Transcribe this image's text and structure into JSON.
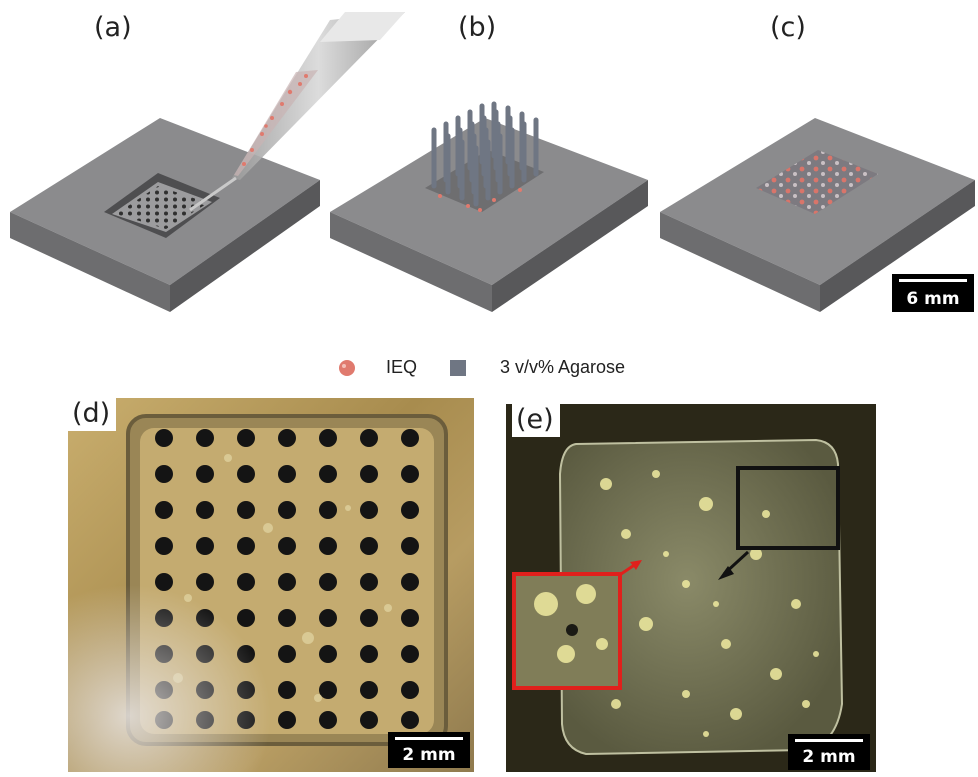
{
  "panels": {
    "a": "(a)",
    "b": "(b)",
    "c": "(c)",
    "d": "(d)",
    "e": "(e)"
  },
  "scale_bars": {
    "top": "6 mm",
    "d": "2 mm",
    "e": "2 mm"
  },
  "legend": {
    "ieq_label": "IEQ",
    "agarose_label": "3 v/v% Agarose",
    "ieq_color": "#e07a6e",
    "agarose_color": "#6f7683"
  },
  "colors": {
    "block_top": "#8a8a8c",
    "block_left": "#6e6e70",
    "block_right": "#5a5a5c",
    "photo_d_bg": "#b59a5c",
    "photo_e_bg": "#2e2a1c",
    "inset_red": "#e0201c",
    "inset_black": "#111111"
  }
}
